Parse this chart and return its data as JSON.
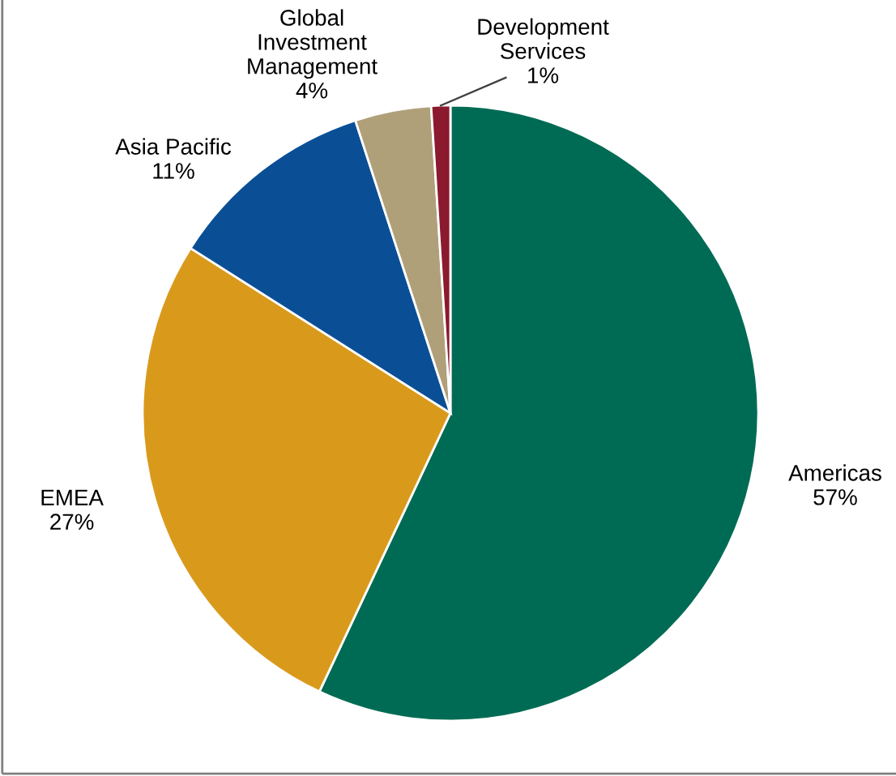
{
  "chart_data": {
    "type": "pie",
    "categories": [
      "Americas",
      "EMEA",
      "Asia Pacific",
      "Global\nInvestment\nManagement",
      "Development\nServices"
    ],
    "values": [
      57,
      27,
      11,
      4,
      1
    ],
    "value_labels": [
      "57%",
      "27%",
      "11%",
      "4%",
      "1%"
    ],
    "colors": [
      "#006b54",
      "#d99a1c",
      "#0a4f96",
      "#b0a07a",
      "#8b1a2e"
    ]
  }
}
